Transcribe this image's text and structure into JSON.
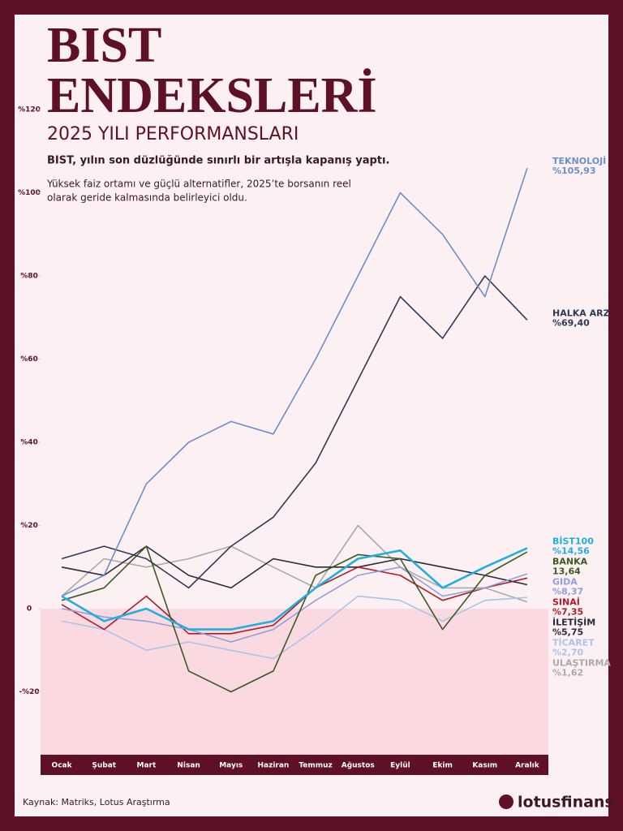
{
  "chart_data": {
    "type": "line",
    "title": [
      "BIST",
      "ENDEKSLERİ"
    ],
    "subtitle": "2025 YILI PERFORMANSLARI",
    "headline": "BIST, yılın son düzlüğünde sınırlı bir artışla kapanış yaptı.",
    "description": [
      "Yüksek faiz ortamı ve güçlü alternatifler, 2025’te borsanın reel",
      "olarak geride kalmasında belirleyici oldu."
    ],
    "source": "Kaynak: Matriks, Lotus Araştırma",
    "brand": "lotusfinans",
    "categories": [
      "Ocak",
      "Şubat",
      "Mart",
      "Nisan",
      "Mayıs",
      "Haziran",
      "Temmuz",
      "Ağustos",
      "Eylül",
      "Ekim",
      "Kasım",
      "Aralık"
    ],
    "ylim": [
      -35,
      125
    ],
    "yticks": [
      {
        "value": 120,
        "label": "%120"
      },
      {
        "value": 100,
        "label": "%100"
      },
      {
        "value": 80,
        "label": "%80"
      },
      {
        "value": 60,
        "label": "%60"
      },
      {
        "value": 40,
        "label": "%40"
      },
      {
        "value": 20,
        "label": "%20"
      },
      0,
      {
        "value": -20,
        "label": "-%20"
      }
    ],
    "grid": false,
    "series": [
      {
        "name": "TEKNOLOJİ",
        "color": "#6b8fca",
        "values": [
          3,
          8,
          30,
          40,
          45,
          42,
          60,
          80,
          100,
          90,
          75,
          105.93
        ],
        "value_labels": [
          null,
          null,
          null,
          null,
          null,
          null,
          null,
          null,
          null,
          null,
          null,
          "%105,93"
        ]
      },
      {
        "name": "HALKA ARZ",
        "color": "#2e3a55",
        "values": [
          12,
          15,
          12,
          5,
          15,
          22,
          35,
          55,
          75,
          65,
          80,
          69.4
        ],
        "value_labels": [
          null,
          null,
          null,
          null,
          null,
          null,
          null,
          null,
          null,
          null,
          null,
          "%69,40"
        ]
      },
      {
        "name": "BİST100",
        "color": "#1fb0e0",
        "values": [
          3,
          -3,
          0,
          -5,
          -5,
          -3,
          5,
          12,
          14,
          5,
          10,
          14.56
        ],
        "value_labels": [
          null,
          null,
          null,
          null,
          null,
          null,
          null,
          null,
          null,
          null,
          null,
          "%14,56"
        ]
      },
      {
        "name": "BANKA",
        "color": "#3b5a22",
        "values": [
          2,
          5,
          15,
          -15,
          -20,
          -15,
          8,
          13,
          12,
          -5,
          8,
          13.64
        ],
        "value_labels": [
          null,
          null,
          null,
          null,
          null,
          null,
          null,
          null,
          null,
          null,
          null,
          "13,64"
        ]
      },
      {
        "name": "GIDA",
        "color": "#8fa0d8",
        "values": [
          0,
          -2,
          -3,
          -5,
          -8,
          -5,
          2,
          8,
          10,
          3,
          5,
          8.37
        ],
        "value_labels": [
          null,
          null,
          null,
          null,
          null,
          null,
          null,
          null,
          null,
          null,
          null,
          "%8,37"
        ]
      },
      {
        "name": "SINAİ",
        "color": "#b01c28",
        "values": [
          1,
          -5,
          3,
          -6,
          -6,
          -4,
          5,
          10,
          8,
          2,
          5,
          7.35
        ],
        "value_labels": [
          null,
          null,
          null,
          null,
          null,
          null,
          null,
          null,
          null,
          null,
          null,
          "%7,35"
        ]
      },
      {
        "name": "İLETİŞİM",
        "color": "#2a2a3a",
        "values": [
          10,
          8,
          15,
          8,
          5,
          12,
          10,
          10,
          12,
          10,
          8,
          5.75
        ],
        "value_labels": [
          null,
          null,
          null,
          null,
          null,
          null,
          null,
          null,
          null,
          null,
          null,
          "%5,75"
        ]
      },
      {
        "name": "TİCARET",
        "color": "#a9c4ea",
        "values": [
          -3,
          -5,
          -10,
          -8,
          -10,
          -12,
          -5,
          3,
          2,
          -3,
          2,
          2.7
        ],
        "value_labels": [
          null,
          null,
          null,
          null,
          null,
          null,
          null,
          null,
          null,
          null,
          null,
          "%2,70"
        ]
      },
      {
        "name": "ULAŞTIRMA",
        "color": "#aaaaaa",
        "values": [
          3,
          12,
          10,
          12,
          15,
          10,
          5,
          20,
          10,
          5,
          5,
          1.62
        ],
        "value_labels": [
          null,
          null,
          null,
          null,
          null,
          null,
          null,
          null,
          null,
          null,
          null,
          "%1,62"
        ]
      }
    ]
  }
}
